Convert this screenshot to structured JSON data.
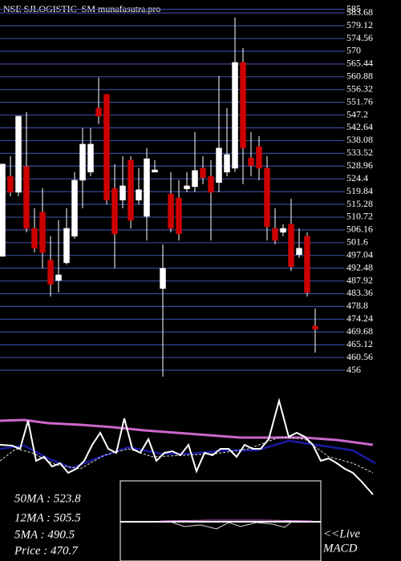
{
  "chart_data": {
    "type": "candlestick",
    "title": "NSE SJLOGISTIC_SM munafasutra.pro",
    "open": [
      496.7,
      525.3,
      519.6,
      528.8,
      506.7,
      512.5,
      495.3,
      488.1,
      494.4,
      503.9,
      523.9,
      526.8,
      549.7,
      554.6,
      521.0,
      516.8,
      531.1,
      516.8,
      511.0,
      526.8,
      485.2,
      519.0,
      517.6,
      520.8,
      521.6,
      528.2,
      525.3,
      523.1,
      526.8,
      528.2,
      566.0,
      531.9,
      535.9,
      528.2,
      506.7,
      505.3,
      508.2,
      497.3,
      503.9,
      471.8
    ],
    "high": [
      529.7,
      532.5,
      546.8,
      548.3,
      513.9,
      521.1,
      503.9,
      509.6,
      513.9,
      526.8,
      542.5,
      542.5,
      560.6,
      554.6,
      529.6,
      532.5,
      532.5,
      528.2,
      535.4,
      531.1,
      501.0,
      526.8,
      523.9,
      526.8,
      541.1,
      532.5,
      531.1,
      561.2,
      549.7,
      582.1,
      571.2,
      541.1,
      539.7,
      532.5,
      513.9,
      508.2,
      517.3,
      506.7,
      505.3,
      478.1
    ],
    "low": [
      496.7,
      518.2,
      518.2,
      505.3,
      498.1,
      492.4,
      482.4,
      483.8,
      493.8,
      503.0,
      513.9,
      525.3,
      544.0,
      515.3,
      492.4,
      513.9,
      506.7,
      515.3,
      502.4,
      526.8,
      453.7,
      505.3,
      502.4,
      519.6,
      519.6,
      522.5,
      502.4,
      519.6,
      525.3,
      526.8,
      522.5,
      525.3,
      523.9,
      502.4,
      501.0,
      503.9,
      491.5,
      496.1,
      482.4,
      462.3
    ],
    "close": [
      529.7,
      519.6,
      546.8,
      506.7,
      499.6,
      498.1,
      486.7,
      490.1,
      506.7,
      523.9,
      536.8,
      536.8,
      546.8,
      516.8,
      504.7,
      521.9,
      509.6,
      520.5,
      531.6,
      527.6,
      492.4,
      506.7,
      504.7,
      521.9,
      527.4,
      524.8,
      519.6,
      535.4,
      533.1,
      566.0,
      535.4,
      529.1,
      528.2,
      507.3,
      502.4,
      506.7,
      493.0,
      499.6,
      483.8,
      470.7
    ],
    "up_color": "#ffffff",
    "down_color": "#cc0000",
    "ylim": [
      456,
      585
    ],
    "yticks": [
      456,
      460.56,
      465.12,
      469.68,
      474.24,
      478.8,
      483.36,
      487.92,
      492.48,
      497.04,
      501.6,
      506.16,
      510.72,
      515.28,
      519.84,
      524.4,
      528.96,
      533.52,
      538.08,
      542.64,
      547.2,
      551.76,
      556.32,
      560.88,
      565.44,
      570,
      574.56,
      579.12,
      583.68,
      585
    ],
    "grid": true,
    "summary": [
      "50MA : 523.8",
      "12MA : 505.5",
      "5MA : 490.5",
      "Price   : 470.7"
    ],
    "macd_label": [
      "<<Live",
      "MACD"
    ]
  }
}
